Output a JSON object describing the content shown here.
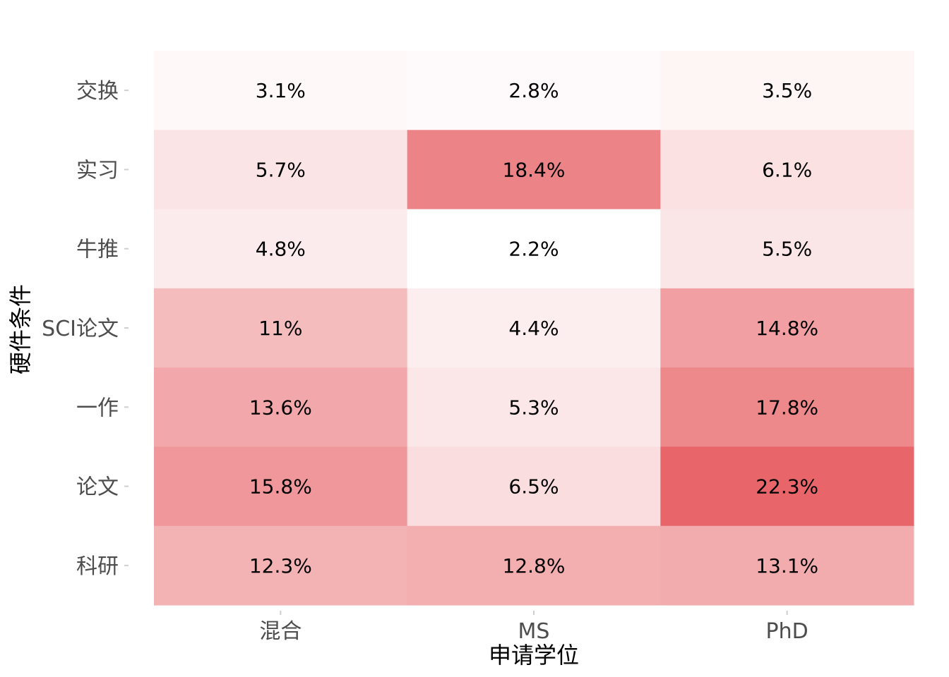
{
  "chart_data": {
    "type": "heatmap",
    "xlabel": "申请学位",
    "ylabel": "硬件条件",
    "x_categories": [
      "混合",
      "MS",
      "PhD"
    ],
    "y_categories": [
      "交换",
      "实习",
      "牛推",
      "SCI论文",
      "一作",
      "论文",
      "科研"
    ],
    "values": [
      [
        3.1,
        2.8,
        3.5
      ],
      [
        5.7,
        18.4,
        6.1
      ],
      [
        4.8,
        2.2,
        5.5
      ],
      [
        11.0,
        4.4,
        14.8
      ],
      [
        13.6,
        5.3,
        17.8
      ],
      [
        15.8,
        6.5,
        22.3
      ],
      [
        12.3,
        12.8,
        13.1
      ]
    ],
    "labels": [
      [
        "3.1%",
        "2.8%",
        "3.5%"
      ],
      [
        "5.7%",
        "18.4%",
        "6.1%"
      ],
      [
        "4.8%",
        "2.2%",
        "5.5%"
      ],
      [
        "11%",
        "4.4%",
        "14.8%"
      ],
      [
        "13.6%",
        "5.3%",
        "17.8%"
      ],
      [
        "15.8%",
        "6.5%",
        "22.3%"
      ],
      [
        "12.3%",
        "12.8%",
        "13.1%"
      ]
    ],
    "color_low": "#ffffff",
    "color_high": "#e8666a",
    "legend": "none",
    "grid": false
  }
}
